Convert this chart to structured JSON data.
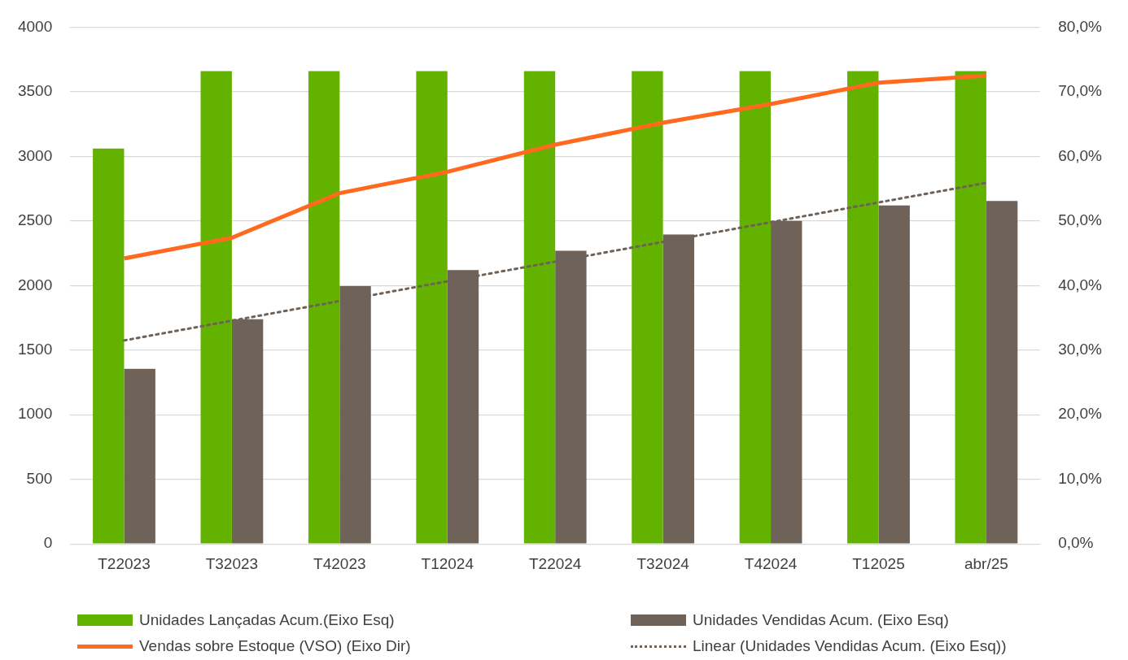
{
  "chart_data": {
    "type": "bar",
    "categories": [
      "T22023",
      "T32023",
      "T42023",
      "T12024",
      "T22024",
      "T32024",
      "T42024",
      "T12025",
      "abr/25"
    ],
    "series": [
      {
        "name": "Unidades Lançadas Acum.(Eixo Esq)",
        "color": "#64b200",
        "values": [
          3060,
          3660,
          3660,
          3660,
          3660,
          3660,
          3660,
          3660,
          3660
        ]
      },
      {
        "name": "Unidades Vendidas Acum. (Eixo Esq)",
        "color": "#6e6259",
        "values": [
          1355,
          1740,
          1995,
          2120,
          2270,
          2395,
          2500,
          2620,
          2655
        ]
      },
      {
        "name": "Vendas sobre Estoque (VSO) (Eixo Dir)",
        "type": "line",
        "axis": "y2",
        "color": "#ff6a1f",
        "marker": "none",
        "line_style": "solid",
        "values": [
          44.2,
          47.4,
          54.3,
          57.6,
          61.8,
          65.2,
          68.1,
          71.4,
          72.5
        ]
      },
      {
        "name": "Linear (Unidades Vendidas Acum. (Eixo Esq))",
        "type": "line",
        "color": "#6e6259",
        "marker": "none",
        "line_style": "dotted",
        "values": [
          1575,
          1728,
          1880,
          2033,
          2185,
          2338,
          2490,
          2643,
          2795
        ]
      }
    ],
    "ylim": [
      0,
      4000
    ],
    "yticks": [
      0,
      500,
      1000,
      1500,
      2000,
      2500,
      3000,
      3500,
      4000
    ],
    "y2lim": [
      0,
      80
    ],
    "y2ticks": [
      {
        "value": 0,
        "label": "0,0%"
      },
      {
        "value": 10,
        "label": "10,0%"
      },
      {
        "value": 20,
        "label": "20,0%"
      },
      {
        "value": 30,
        "label": "30,0%"
      },
      {
        "value": 40,
        "label": "40,0%"
      },
      {
        "value": 50,
        "label": "50,0%"
      },
      {
        "value": 60,
        "label": "60,0%"
      },
      {
        "value": 70,
        "label": "70,0%"
      },
      {
        "value": 80,
        "label": "80,0%"
      }
    ],
    "grid": "y",
    "legend": "bottom"
  }
}
